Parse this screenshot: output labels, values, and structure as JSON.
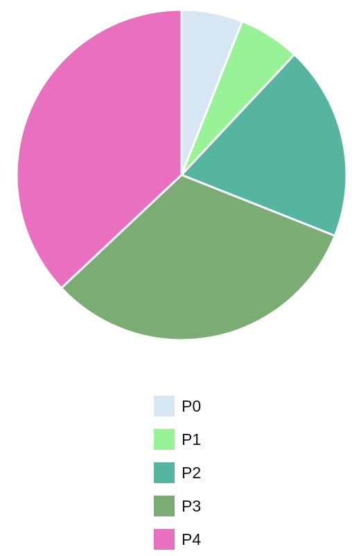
{
  "chart_data": {
    "type": "pie",
    "title": "",
    "categories": [
      "P0",
      "P1",
      "P2",
      "P3",
      "P4"
    ],
    "values": [
      6,
      6,
      19,
      32,
      37
    ],
    "colors": [
      "#d6e6f2",
      "#98f296",
      "#55b5a0",
      "#7aac74",
      "#e96fbf"
    ],
    "start_angle": "12 o'clock",
    "direction": "clockwise",
    "legend_position": "bottom-center"
  }
}
